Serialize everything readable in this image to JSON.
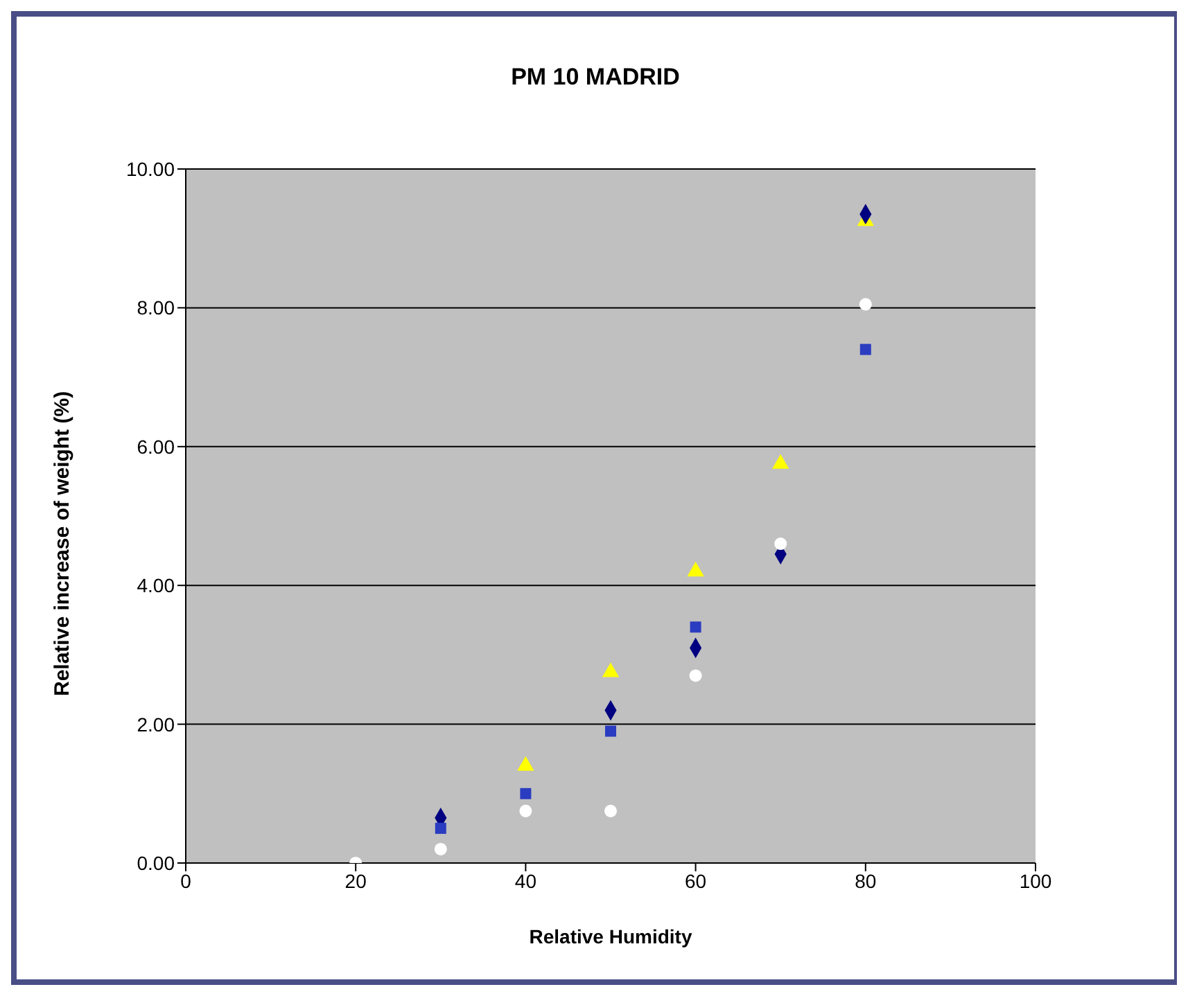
{
  "chart_data": {
    "type": "scatter",
    "title": "PM 10 MADRID",
    "xlabel": "Relative Humidity",
    "ylabel": "Relative increase of weight (%)",
    "x": [
      20,
      30,
      40,
      50,
      60,
      70,
      80
    ],
    "series": [
      {
        "color": "#ffff00",
        "marker": "triangle",
        "values": [
          null,
          null,
          1.4,
          2.75,
          4.2,
          5.75,
          9.25
        ]
      },
      {
        "color": "#000080",
        "marker": "diamond",
        "values": [
          null,
          0.65,
          null,
          2.2,
          3.1,
          4.45,
          9.35
        ]
      },
      {
        "color": "#2a3cc0",
        "marker": "square",
        "values": [
          null,
          0.5,
          1.0,
          1.9,
          3.4,
          null,
          7.4
        ]
      },
      {
        "color": "#ffffff",
        "marker": "circle",
        "values": [
          0,
          0.2,
          0.75,
          0.75,
          2.7,
          4.6,
          8.05
        ]
      }
    ],
    "xlim": [
      0,
      100
    ],
    "xticks": [
      0,
      20,
      40,
      60,
      80,
      100
    ],
    "ylim": [
      0,
      10
    ],
    "yticks": [
      {
        "value": 0,
        "label": "0.00"
      },
      {
        "value": 2,
        "label": "2.00"
      },
      {
        "value": 4,
        "label": "4.00"
      },
      {
        "value": 6,
        "label": "6.00"
      },
      {
        "value": 8,
        "label": "8.00"
      },
      {
        "value": 10,
        "label": "10.00"
      }
    ],
    "grid": "y",
    "legend": false
  }
}
